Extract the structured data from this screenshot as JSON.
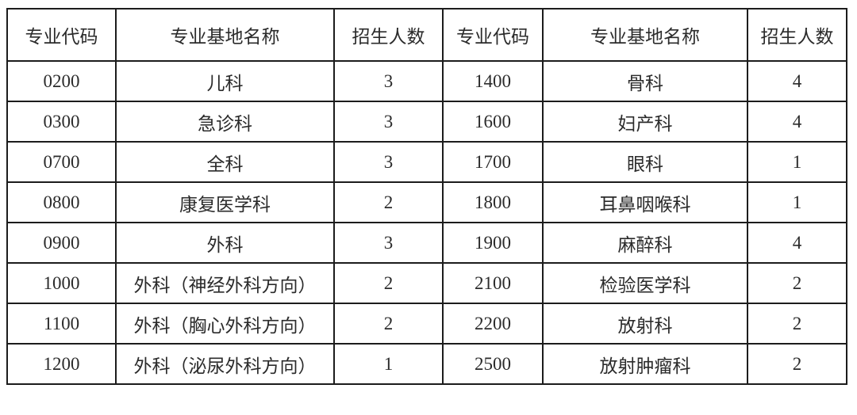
{
  "table": {
    "columns": [
      {
        "label": "专业代码"
      },
      {
        "label": "专业基地名称"
      },
      {
        "label": "招生人数"
      },
      {
        "label": "专业代码"
      },
      {
        "label": "专业基地名称"
      },
      {
        "label": "招生人数"
      }
    ],
    "rows": [
      [
        "0200",
        "儿科",
        "3",
        "1400",
        "骨科",
        "4"
      ],
      [
        "0300",
        "急诊科",
        "3",
        "1600",
        "妇产科",
        "4"
      ],
      [
        "0700",
        "全科",
        "3",
        "1700",
        "眼科",
        "1"
      ],
      [
        "0800",
        "康复医学科",
        "2",
        "1800",
        "耳鼻咽喉科",
        "1"
      ],
      [
        "0900",
        "外科",
        "3",
        "1900",
        "麻醉科",
        "4"
      ],
      [
        "1000",
        "外科（神经外科方向）",
        "2",
        "2100",
        "检验医学科",
        "2"
      ],
      [
        "1100",
        "外科（胸心外科方向）",
        "2",
        "2200",
        "放射科",
        "2"
      ],
      [
        "1200",
        "外科（泌尿外科方向）",
        "1",
        "2500",
        "放射肿瘤科",
        "2"
      ]
    ]
  }
}
